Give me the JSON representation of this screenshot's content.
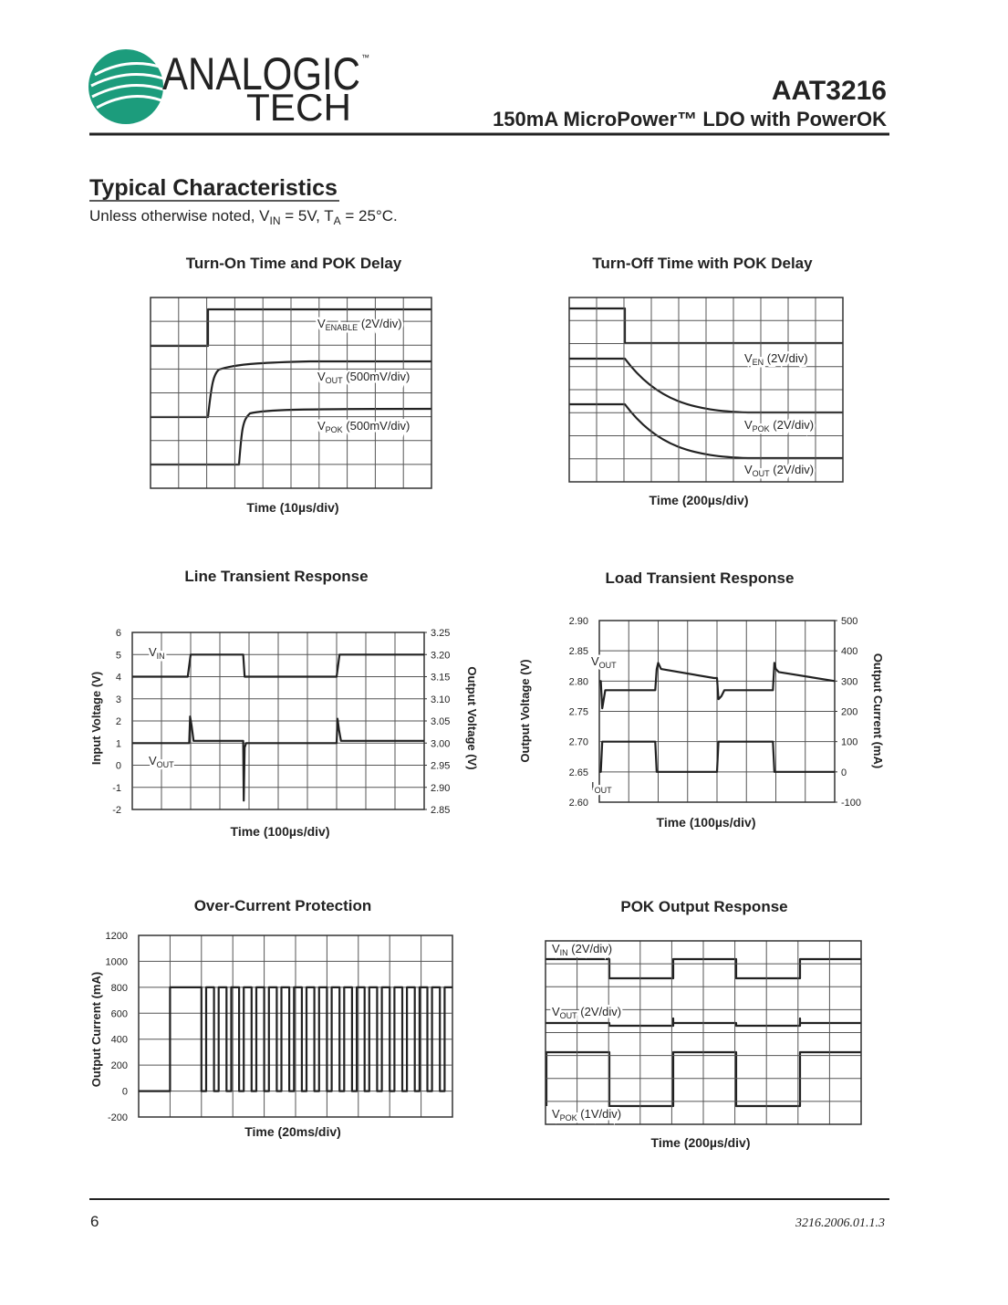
{
  "header": {
    "logo_top": "ANALOGIC",
    "logo_tm": "™",
    "logo_bottom": "TECH",
    "part": "AAT3216",
    "subtitle": "150mA MicroPower™ LDO with PowerOK"
  },
  "section": {
    "title": "Typical Characteristics",
    "note": [
      "Unless otherwise noted, V",
      "IN",
      " = 5V, T",
      "A",
      " = 25°C."
    ]
  },
  "charts": [
    {
      "type": "scope",
      "title": "Turn-On Time and POK Delay",
      "xlabel": "Time (10µs/div)",
      "grid": [
        10,
        8
      ],
      "labels": [
        {
          "text": "V",
          "sub": "ENABLE",
          "tail": " (2V/div)"
        },
        {
          "text": "V",
          "sub": "OUT",
          "tail": " (500mV/div)"
        },
        {
          "text": "V",
          "sub": "POK",
          "tail": " (500mV/div)"
        }
      ]
    },
    {
      "type": "scope",
      "title": "Turn-Off Time with POK Delay",
      "xlabel": "Time (200µs/div)",
      "grid": [
        10,
        8
      ],
      "labels": [
        {
          "text": "V",
          "sub": "EN",
          "tail": " (2V/div)"
        },
        {
          "text": "V",
          "sub": "POK",
          "tail": " (2V/div)"
        },
        {
          "text": "V",
          "sub": "OUT",
          "tail": " (2V/div)"
        }
      ]
    },
    {
      "type": "line",
      "title": "Line Transient Response",
      "xlabel": "Time (100µs/div)",
      "ylabel": "Input Voltage (V)",
      "y2label": "Output Voltage (V)",
      "grid": [
        10,
        8
      ],
      "xlim": [
        0,
        10
      ],
      "ylim": [
        -2,
        6
      ],
      "yticks": [
        -2,
        -1,
        0,
        1,
        2,
        3,
        4,
        5,
        6
      ],
      "y2lim": [
        2.85,
        3.25
      ],
      "y2ticks": [
        2.85,
        {
          "value": 2.9,
          "label": "2.90"
        },
        2.95,
        {
          "value": 3.0,
          "label": "3.00"
        },
        3.05,
        {
          "value": 3.1,
          "label": "3.10"
        },
        3.15,
        {
          "value": 3.2,
          "label": "3.20"
        },
        3.25
      ],
      "series": [
        {
          "label": {
            "text": "V",
            "sub": "IN"
          },
          "x": [
            0,
            1.9,
            2.0,
            3.8,
            3.85,
            7.0,
            7.1,
            10
          ],
          "values": [
            4,
            4,
            5,
            5,
            4,
            4,
            5,
            5
          ]
        },
        {
          "label": {
            "text": "V",
            "sub": "OUT"
          },
          "axis": "y2",
          "x": [
            0,
            1.95,
            1.98,
            2.03,
            2.1,
            3.8,
            3.82,
            3.85,
            3.9,
            7.0,
            7.03,
            7.08,
            7.15,
            10
          ],
          "values": [
            3.0,
            3.0,
            3.06,
            3.04,
            3.005,
            3.005,
            2.87,
            2.99,
            3.0,
            3.0,
            3.055,
            3.03,
            3.005,
            3.005
          ]
        }
      ]
    },
    {
      "type": "line",
      "title": "Load Transient Response",
      "xlabel": "Time (100µs/div)",
      "ylabel": "Output Voltage (V)",
      "y2label": "Output Current (mA)",
      "grid": [
        8,
        6
      ],
      "xlim": [
        0,
        8
      ],
      "ylim": [
        2.6,
        2.9
      ],
      "yticks": [
        {
          "value": 2.6,
          "label": "2.60"
        },
        2.65,
        {
          "value": 2.7,
          "label": "2.70"
        },
        2.75,
        {
          "value": 2.8,
          "label": "2.80"
        },
        2.85,
        {
          "value": 2.9,
          "label": "2.90"
        }
      ],
      "y2lim": [
        -100,
        500
      ],
      "y2ticks": [
        -100,
        0,
        100,
        200,
        300,
        400,
        500
      ],
      "series": [
        {
          "label": {
            "text": "V",
            "sub": "OUT"
          },
          "x": [
            0,
            0.05,
            0.1,
            0.2,
            1.9,
            1.95,
            2.0,
            2.1,
            3.9,
            4.0,
            4.05,
            4.15,
            4.25,
            5.9,
            5.95,
            6.0,
            6.1,
            8
          ],
          "values": [
            2.8,
            2.8,
            2.755,
            2.785,
            2.785,
            2.82,
            2.83,
            2.82,
            2.805,
            2.805,
            2.77,
            2.775,
            2.785,
            2.785,
            2.83,
            2.82,
            2.815,
            2.8
          ]
        },
        {
          "label": {
            "text": "I",
            "sub": "OUT"
          },
          "axis": "y2",
          "x": [
            0,
            0.05,
            0.1,
            1.9,
            1.95,
            4.0,
            4.05,
            5.9,
            5.95,
            8
          ],
          "values": [
            0,
            0,
            100,
            100,
            0,
            0,
            100,
            100,
            0,
            0
          ]
        }
      ]
    },
    {
      "type": "line",
      "title": "Over-Current Protection",
      "xlabel": "Time (20ms/div)",
      "ylabel": "Output Current (mA)",
      "grid": [
        10,
        7
      ],
      "xlim": [
        0,
        10
      ],
      "ylim": [
        -200,
        1200
      ],
      "yticks": [
        -200,
        0,
        200,
        400,
        600,
        800,
        1000,
        1200
      ],
      "series": [
        {
          "x": [
            0,
            1,
            1,
            2,
            2,
            2.15,
            2.15,
            2.4,
            2.4,
            2.55,
            2.55,
            2.8,
            2.8,
            2.95,
            2.95,
            3.2,
            3.2,
            3.35,
            3.35,
            3.6,
            3.6,
            3.75,
            3.75,
            4,
            4,
            4.15,
            4.15,
            4.4,
            4.4,
            4.55,
            4.55,
            4.8,
            4.8,
            4.95,
            4.95,
            5.2,
            5.2,
            5.35,
            5.35,
            5.6,
            5.6,
            5.75,
            5.75,
            6,
            6,
            6.15,
            6.15,
            6.4,
            6.4,
            6.55,
            6.55,
            6.8,
            6.8,
            6.95,
            6.95,
            7.2,
            7.2,
            7.35,
            7.35,
            7.6,
            7.6,
            7.75,
            7.75,
            8,
            8,
            8.15,
            8.15,
            8.4,
            8.4,
            8.55,
            8.55,
            8.8,
            8.8,
            8.95,
            8.95,
            9.2,
            9.2,
            9.35,
            9.35,
            9.6,
            9.6,
            9.75,
            9.75,
            10
          ],
          "values": [
            0,
            0,
            800,
            800,
            0,
            0,
            800,
            800,
            0,
            0,
            800,
            800,
            0,
            0,
            800,
            800,
            0,
            0,
            800,
            800,
            0,
            0,
            800,
            800,
            0,
            0,
            800,
            800,
            0,
            0,
            800,
            800,
            0,
            0,
            800,
            800,
            0,
            0,
            800,
            800,
            0,
            0,
            800,
            800,
            0,
            0,
            800,
            800,
            0,
            0,
            800,
            800,
            0,
            0,
            800,
            800,
            0,
            0,
            800,
            800,
            0,
            0,
            800,
            800,
            0,
            0,
            800,
            800,
            0,
            0,
            800,
            800,
            0,
            0,
            800,
            800,
            0,
            0,
            800,
            800,
            0,
            0,
            800,
            800
          ]
        }
      ]
    },
    {
      "type": "scope",
      "title": "POK Output Response",
      "xlabel": "Time (200µs/div)",
      "grid": [
        10,
        8
      ],
      "labels": [
        {
          "text": "V",
          "sub": "IN",
          "tail": " (2V/div)"
        },
        {
          "text": "V",
          "sub": "OUT",
          "tail": " (2V/div)"
        },
        {
          "text": "V",
          "sub": "POK",
          "tail": " (1V/div)"
        }
      ]
    }
  ],
  "footer": {
    "page": "6",
    "doc": "3216.2006.01.1.3"
  }
}
